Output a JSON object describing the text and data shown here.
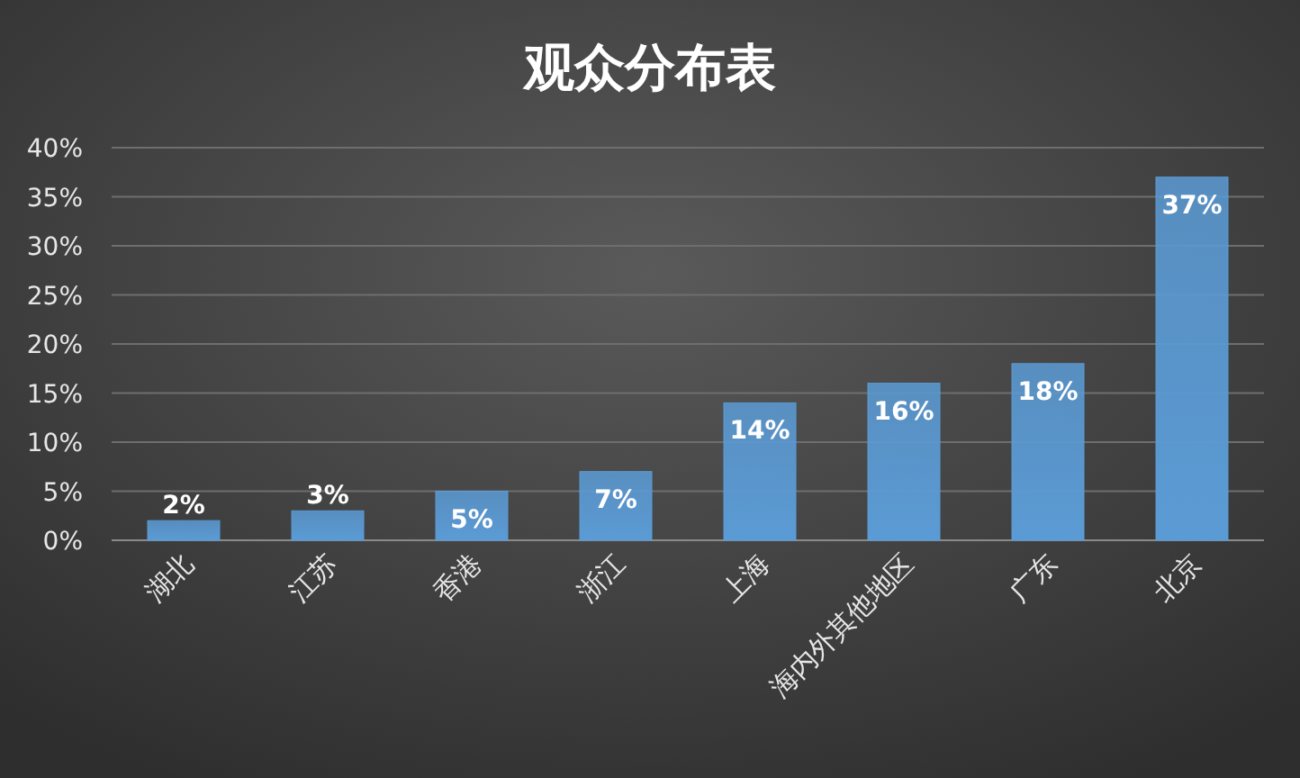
{
  "chart_data": {
    "type": "bar",
    "title": "观众分布表",
    "categories": [
      "湖北",
      "江苏",
      "香港",
      "浙江",
      "上海",
      "海内外其他地区",
      "广东",
      "北京"
    ],
    "values": [
      2,
      3,
      5,
      7,
      14,
      16,
      18,
      37
    ],
    "value_labels": [
      "2%",
      "3%",
      "5%",
      "7%",
      "14%",
      "16%",
      "18%",
      "37%"
    ],
    "color": "#5b9bd5",
    "ylim": [
      0,
      40
    ],
    "yticks": [
      {
        "value": 0,
        "label": "0%"
      },
      {
        "value": 5,
        "label": "5%"
      },
      {
        "value": 10,
        "label": "10%"
      },
      {
        "value": 15,
        "label": "15%"
      },
      {
        "value": 20,
        "label": "20%"
      },
      {
        "value": 25,
        "label": "25%"
      },
      {
        "value": 30,
        "label": "30%"
      },
      {
        "value": 35,
        "label": "35%"
      },
      {
        "value": 40,
        "label": "40%"
      }
    ],
    "grid": "y"
  }
}
